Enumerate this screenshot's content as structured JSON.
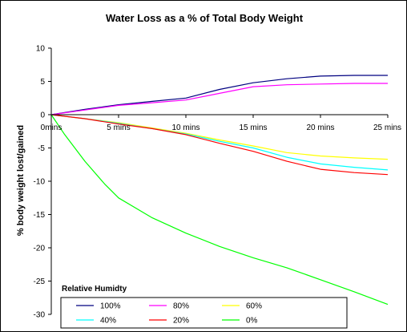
{
  "chart_data": {
    "type": "line",
    "title": "Water Loss as a % of Total Body Weight",
    "xlabel": "",
    "ylabel": "% body weight lost/gained",
    "x": [
      "0mins",
      "5 mins",
      "10 mins",
      "15 mins",
      "20 mins",
      "25 mins"
    ],
    "xlim": [
      0,
      25
    ],
    "ylim": [
      -30,
      10
    ],
    "yticks": [
      10,
      5,
      0,
      -5,
      -10,
      -15,
      -20,
      -25,
      -30
    ],
    "legend_title": "Relative Humidty",
    "legend_position": "bottom-left",
    "grid": false,
    "series": [
      {
        "name": "100%",
        "color": "#000080",
        "points": [
          [
            0,
            0
          ],
          [
            2.5,
            0.8
          ],
          [
            5,
            1.5
          ],
          [
            7.5,
            2.0
          ],
          [
            10,
            2.5
          ],
          [
            12.5,
            3.8
          ],
          [
            15,
            4.8
          ],
          [
            17.5,
            5.4
          ],
          [
            20,
            5.8
          ],
          [
            22.5,
            5.9
          ],
          [
            25,
            5.9
          ]
        ]
      },
      {
        "name": "80%",
        "color": "#ff00ff",
        "points": [
          [
            0,
            0
          ],
          [
            2.5,
            0.7
          ],
          [
            5,
            1.4
          ],
          [
            7.5,
            1.8
          ],
          [
            10,
            2.2
          ],
          [
            12.5,
            3.2
          ],
          [
            15,
            4.2
          ],
          [
            17.5,
            4.5
          ],
          [
            20,
            4.6
          ],
          [
            22.5,
            4.7
          ],
          [
            25,
            4.7
          ]
        ]
      },
      {
        "name": "60%",
        "color": "#ffff00",
        "points": [
          [
            0,
            0
          ],
          [
            2.5,
            -0.6
          ],
          [
            5,
            -1.2
          ],
          [
            7.5,
            -2.0
          ],
          [
            10,
            -2.8
          ],
          [
            12.5,
            -3.8
          ],
          [
            15,
            -4.7
          ],
          [
            17.5,
            -5.7
          ],
          [
            20,
            -6.2
          ],
          [
            22.5,
            -6.5
          ],
          [
            25,
            -6.7
          ]
        ]
      },
      {
        "name": "40%",
        "color": "#00ffff",
        "points": [
          [
            0,
            0
          ],
          [
            2.5,
            -0.6
          ],
          [
            5,
            -1.3
          ],
          [
            7.5,
            -2.1
          ],
          [
            10,
            -2.9
          ],
          [
            12.5,
            -4.0
          ],
          [
            15,
            -5.0
          ],
          [
            17.5,
            -6.4
          ],
          [
            20,
            -7.4
          ],
          [
            22.5,
            -7.9
          ],
          [
            25,
            -8.3
          ]
        ]
      },
      {
        "name": "20%",
        "color": "#ff0000",
        "points": [
          [
            0,
            0
          ],
          [
            2.5,
            -0.6
          ],
          [
            5,
            -1.4
          ],
          [
            7.5,
            -2.1
          ],
          [
            10,
            -3.0
          ],
          [
            12.5,
            -4.3
          ],
          [
            15,
            -5.5
          ],
          [
            17.5,
            -7.0
          ],
          [
            20,
            -8.2
          ],
          [
            22.5,
            -8.7
          ],
          [
            25,
            -9.0
          ]
        ]
      },
      {
        "name": "0%",
        "color": "#00ff00",
        "points": [
          [
            0,
            0
          ],
          [
            1,
            -3.0
          ],
          [
            2.5,
            -7.0
          ],
          [
            4,
            -10.5
          ],
          [
            5,
            -12.5
          ],
          [
            7.5,
            -15.5
          ],
          [
            10,
            -17.8
          ],
          [
            12.5,
            -19.8
          ],
          [
            15,
            -21.5
          ],
          [
            17.5,
            -23.0
          ],
          [
            20,
            -24.8
          ],
          [
            22.5,
            -26.6
          ],
          [
            25,
            -28.5
          ]
        ]
      }
    ]
  }
}
